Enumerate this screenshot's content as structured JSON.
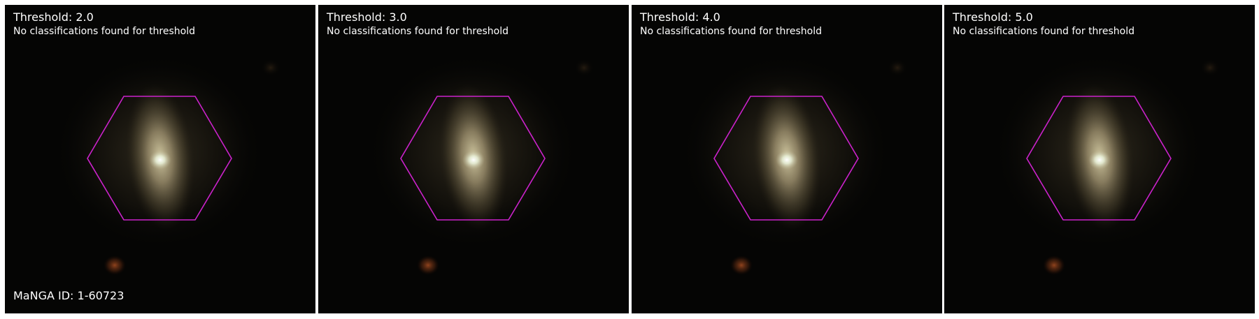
{
  "colors": {
    "background": "#050504",
    "hexagon_outline": "#cc22cc",
    "text": "#ffffff",
    "divider": "#ffffff"
  },
  "panels": [
    {
      "title": "Threshold: 2.0",
      "subtitle": "No classifications found for threshold"
    },
    {
      "title": "Threshold: 3.0",
      "subtitle": "No classifications found for threshold"
    },
    {
      "title": "Threshold: 4.0",
      "subtitle": "No classifications found for threshold"
    },
    {
      "title": "Threshold: 5.0",
      "subtitle": "No classifications found for threshold"
    }
  ],
  "galaxy": {
    "manga_id_label": "MaNGA ID: 1-60723"
  }
}
